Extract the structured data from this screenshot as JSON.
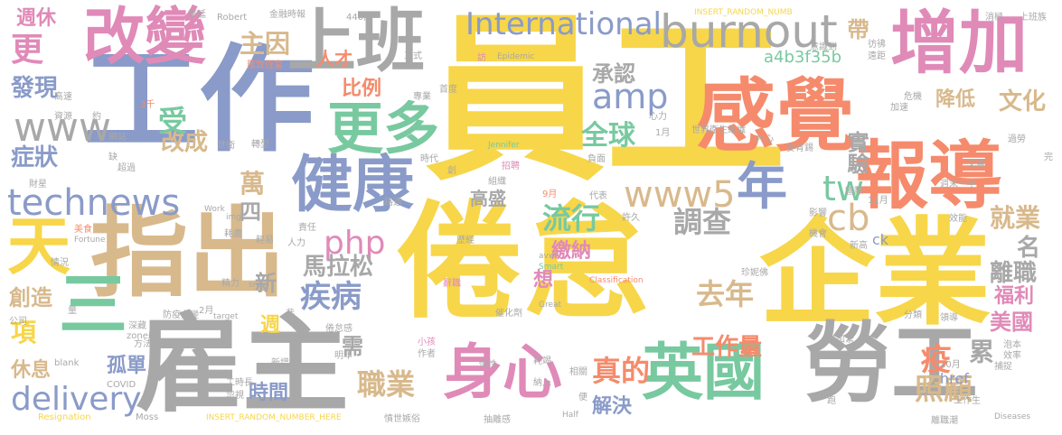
{
  "palette": {
    "yellow": "#f7d64a",
    "gray": "#a8a8a8",
    "blue": "#8a9bc9",
    "pink": "#e08ab8",
    "orange": "#f58b6c",
    "green": "#78c9a0",
    "tan": "#d8b98c"
  },
  "words": [
    "員工",
    "倦怠",
    "企業",
    "工作",
    "雇主",
    "指出",
    "上班",
    "勞工",
    "增加",
    "感覺",
    "報導",
    "身心",
    "英國",
    "改變",
    "健康",
    "更多",
    "天",
    "年",
    "burnout",
    "International",
    "www",
    "www5",
    "technews",
    "delivery",
    "amp",
    "php",
    "tw",
    "cb",
    "調查",
    "流行",
    "疾病",
    "馬拉松",
    "主因",
    "承認",
    "全球",
    "去年",
    "工作量",
    "真的",
    "職業",
    "解決",
    "時間",
    "照顧",
    "累",
    "疫",
    "美國",
    "福利",
    "離職",
    "名",
    "就業",
    "實驗",
    "文化",
    "降低",
    "帶",
    "創造",
    "休息",
    "孤單",
    "項",
    "症狀",
    "改成",
    "受",
    "萬",
    "四",
    "新",
    "發現",
    "週休",
    "更",
    "人才",
    "比例",
    "高盛",
    "繳納",
    "需",
    "想",
    "週",
    "a4b3f35b",
    "href",
    "ck",
    "三",
    "Epidemic",
    "Jennifer",
    "Classification",
    "Smart",
    "Great",
    "avw",
    "zoneid",
    "src",
    "img",
    "Work",
    "Fortune",
    "target",
    "blank",
    "COVID",
    "Resignation",
    "Moss",
    "Half",
    "Diseases",
    "Robert",
    "INSERT_RANDOM_NUMBER_HERE",
    "INSERT_RANDOM_NUMB",
    "蔓延",
    "金融時報",
    "440萬",
    "正式",
    "消極",
    "上班族",
    "羅致恆富",
    "訪",
    "首度",
    "意識到",
    "彷彿",
    "遠距",
    "危機",
    "心力",
    "加速",
    "專業",
    "內心",
    "麥肯錫",
    "世界衛生組織",
    "世衛",
    "轉型",
    "時代",
    "招聘",
    "負面",
    "國際",
    "週末一半",
    "11月",
    "影響",
    "機會",
    "新高",
    "效能",
    "許久",
    "9月",
    "代表",
    "組織",
    "歷經",
    "珍妮佛",
    "辭職",
    "催化劑",
    "小孩",
    "作者",
    "加緊",
    "分類",
    "領導",
    "泡本",
    "效率",
    "10月",
    "捕捉",
    "耗竭",
    "相關",
    "抽離感",
    "惰性",
    "憤世嫉俗",
    "納入",
    "便",
    "跑",
    "離職潮",
    "工作生",
    "工時長",
    "忽視",
    "明年",
    "新增",
    "倦怠感",
    "方法",
    "非",
    "深藏",
    "防疫力變",
    "公司",
    "量",
    "情況",
    "美食",
    "財星",
    "超過",
    "網站",
    "資源",
    "高速",
    "約",
    "3千",
    "1月",
    "2月",
    "人力",
    "精力",
    "輕易",
    "耗盡",
    "責任",
    "路透",
    "創",
    "缺",
    "完",
    "過勞",
    "文章"
  ]
}
